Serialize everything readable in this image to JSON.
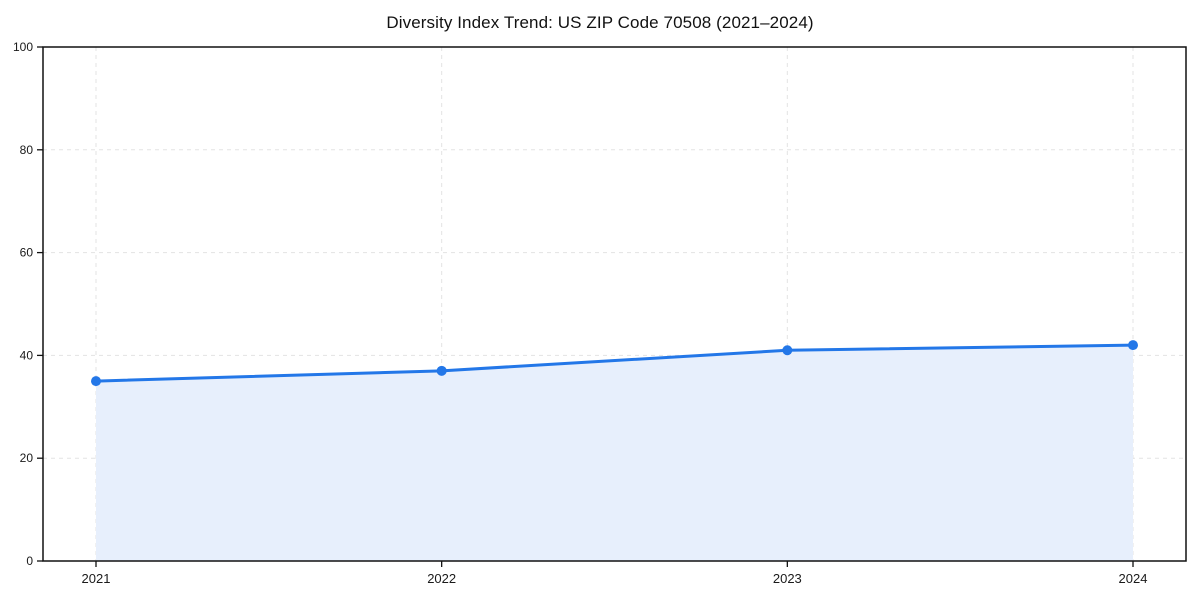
{
  "chart_data": {
    "type": "line",
    "title": "Diversity Index Trend: US ZIP Code 70508 (2021–2024)",
    "series_name": "Diversity Index",
    "x": [
      "2021",
      "2022",
      "2023",
      "2024"
    ],
    "values": [
      35,
      37,
      41,
      42
    ],
    "xlabel": "",
    "ylabel": "",
    "ylim": [
      0,
      100
    ],
    "yticks": [
      0,
      20,
      40,
      60,
      80,
      100
    ],
    "grid": true,
    "grid_style": "dashed",
    "legend_position": "none",
    "area_fill": true,
    "markers": true,
    "colors": {
      "line": "#2377e8",
      "marker": "#2377e8",
      "area": "#e7effc",
      "grid": "#e3e3e3",
      "spine": "#111111",
      "tick_text": "#1a1a1a",
      "title_text": "#111111",
      "background": "#ffffff"
    }
  }
}
